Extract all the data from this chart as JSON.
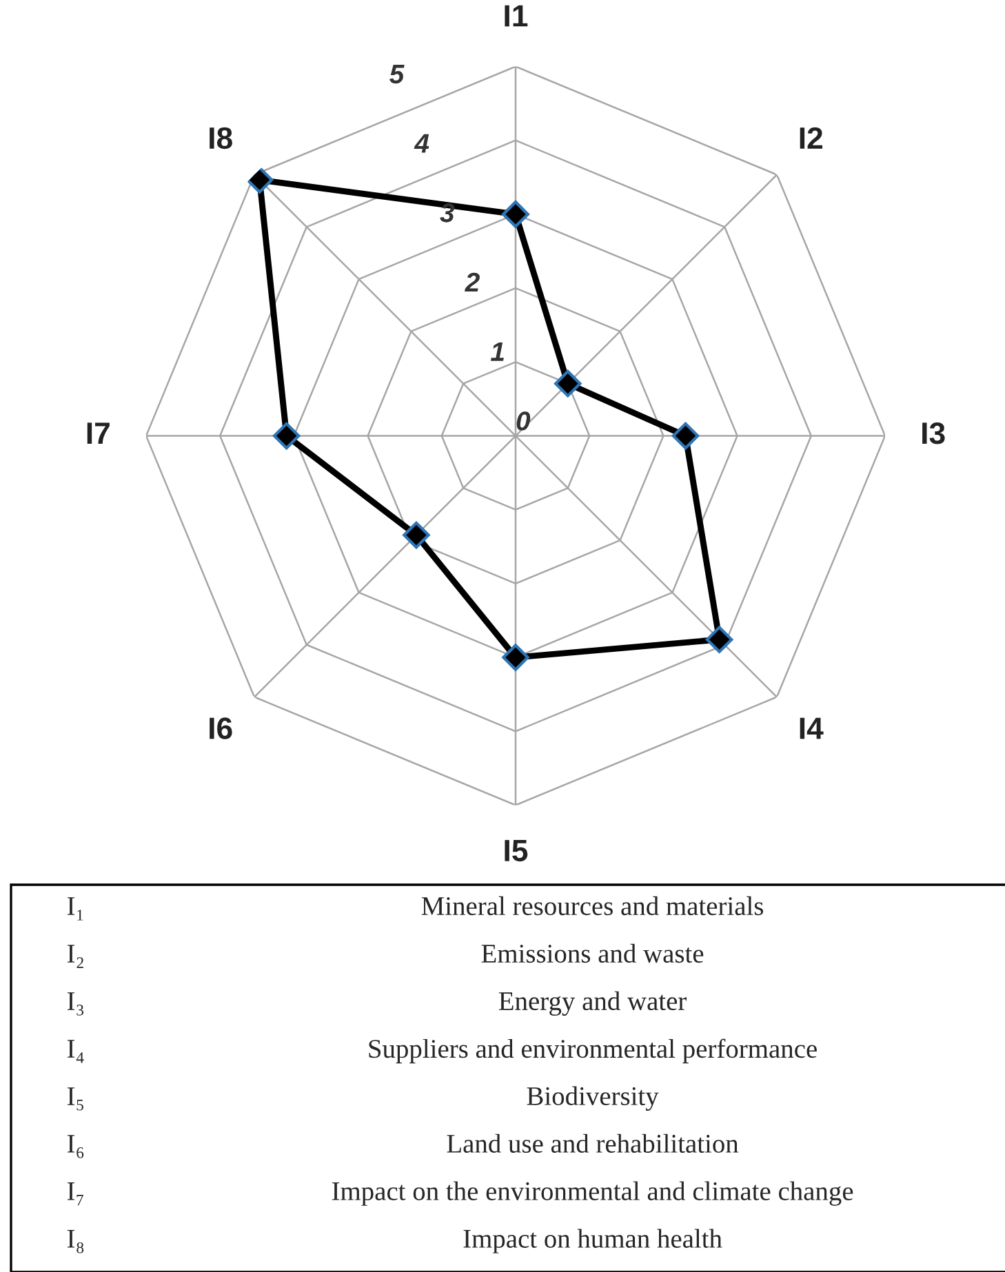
{
  "chart_data": {
    "type": "radar",
    "categories": [
      "I1",
      "I2",
      "I3",
      "I4",
      "I5",
      "I6",
      "I7",
      "I8"
    ],
    "series": [
      {
        "color": "#000000",
        "values": [
          3,
          1,
          2.3,
          3.9,
          3,
          1.9,
          3.1,
          4.9
        ]
      }
    ],
    "ylim": [
      0,
      5
    ],
    "yticks": [
      0,
      1,
      2,
      3,
      4,
      5
    ],
    "grid": true,
    "marker": "diamond",
    "line_style": "solid",
    "annotations": [
      "I₁",
      "Mineral resources and materials",
      "I₂",
      "Emissions and waste",
      "I₃",
      "Energy and water",
      "I₄",
      "Suppliers and environmental performance",
      "I₅",
      "Biodiversity",
      "I₆",
      "Land use and rehabilitation",
      "I₇",
      "Impact on the environmental and climate change",
      "I₈",
      "Impact on human health"
    ]
  }
}
